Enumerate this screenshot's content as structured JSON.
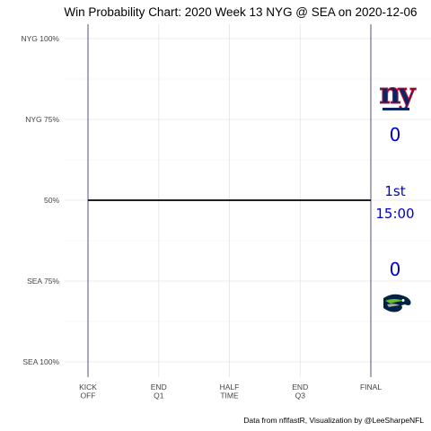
{
  "chart_data": {
    "type": "line",
    "title": "Win Probability Chart: 2020 Week 13 NYG @ SEA on 2020-12-06",
    "x_ticks": [
      "KICK\nOFF",
      "END\nQ1",
      "HALF\nTIME",
      "END\nQ3",
      "FINAL"
    ],
    "y_ticks": [
      "NYG 100%",
      "NYG 75%",
      "50%",
      "SEA 75%",
      "SEA 100%"
    ],
    "ylim": [
      0,
      1
    ],
    "grid": true,
    "series": [
      {
        "x": [
          0,
          60
        ],
        "y": [
          0.5,
          0.5
        ],
        "color": "#000000"
      }
    ],
    "caption": "Data from nflfastR, Visualization by @LeeSharpeNFL"
  },
  "scoreboard": {
    "away_team": "NYG",
    "away_score": "0",
    "home_team": "SEA",
    "home_score": "0",
    "quarter": "1st",
    "clock": "15:00",
    "away_color": "#0b2265",
    "home_color": "#002244",
    "text_color": "#0000cc"
  }
}
